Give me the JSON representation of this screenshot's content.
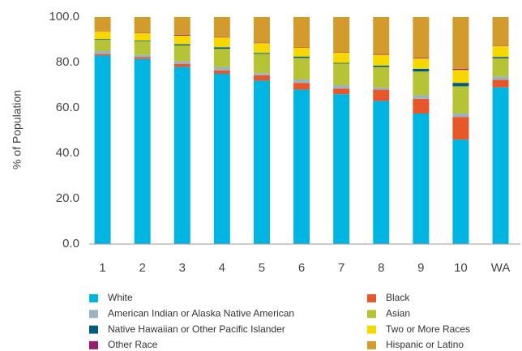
{
  "chart_data": {
    "type": "stacked_bar",
    "y_label": "% of Population",
    "categories": [
      "1",
      "2",
      "3",
      "4",
      "5",
      "6",
      "7",
      "8",
      "9",
      "10",
      "WA"
    ],
    "series": [
      {
        "name": "White",
        "color": "#00b5e2",
        "values": [
          83,
          81.5,
          78,
          75,
          72,
          68,
          66,
          63,
          57.5,
          46,
          69
        ]
      },
      {
        "name": "Black",
        "color": "#e8572a",
        "values": [
          0.7,
          0.8,
          1.3,
          1.5,
          2.3,
          3,
          2.5,
          5,
          6.5,
          10,
          3.3
        ]
      },
      {
        "name": "American Indian or Alaska Native American",
        "color": "#9ab3c0",
        "values": [
          1.3,
          1,
          1.2,
          1.5,
          1,
          1.5,
          1.5,
          1,
          1.5,
          1.5,
          1.5
        ]
      },
      {
        "name": "Asian",
        "color": "#b5c334",
        "values": [
          5,
          6,
          7,
          8,
          8.5,
          9.5,
          9.5,
          9,
          10.5,
          12,
          8
        ]
      },
      {
        "name": "Native Hawaiian or Other Pacific Islander",
        "color": "#005b7f",
        "values": [
          0.3,
          0.3,
          0.5,
          0.7,
          0.4,
          0.6,
          0.3,
          0.6,
          1.2,
          1.5,
          0.6
        ]
      },
      {
        "name": "Two or More Races",
        "color": "#f6d800",
        "values": [
          3.5,
          3.3,
          3.8,
          4.3,
          4.3,
          4,
          4.5,
          4.8,
          4.5,
          5.7,
          4.8
        ]
      },
      {
        "name": "Other Race",
        "color": "#9b1a6e",
        "values": [
          0.2,
          0.2,
          0.4,
          0.2,
          0.2,
          0.2,
          0.2,
          0.3,
          0.3,
          0.5,
          0.2
        ]
      },
      {
        "name": "Hispanic or Latino",
        "color": "#d39a2c",
        "values": [
          6,
          6.9,
          7.8,
          8.8,
          11.3,
          13.2,
          15.5,
          16.3,
          18,
          22.8,
          12.6
        ]
      }
    ],
    "ylim": [
      0,
      100
    ],
    "yticks": [
      {
        "value": 0,
        "label": "0.0"
      },
      {
        "value": 20,
        "label": "20.0"
      },
      {
        "value": 40,
        "label": "40.0"
      },
      {
        "value": 60,
        "label": "60.0"
      },
      {
        "value": 80,
        "label": "80.0"
      },
      {
        "value": 100,
        "label": "100.0"
      }
    ]
  }
}
